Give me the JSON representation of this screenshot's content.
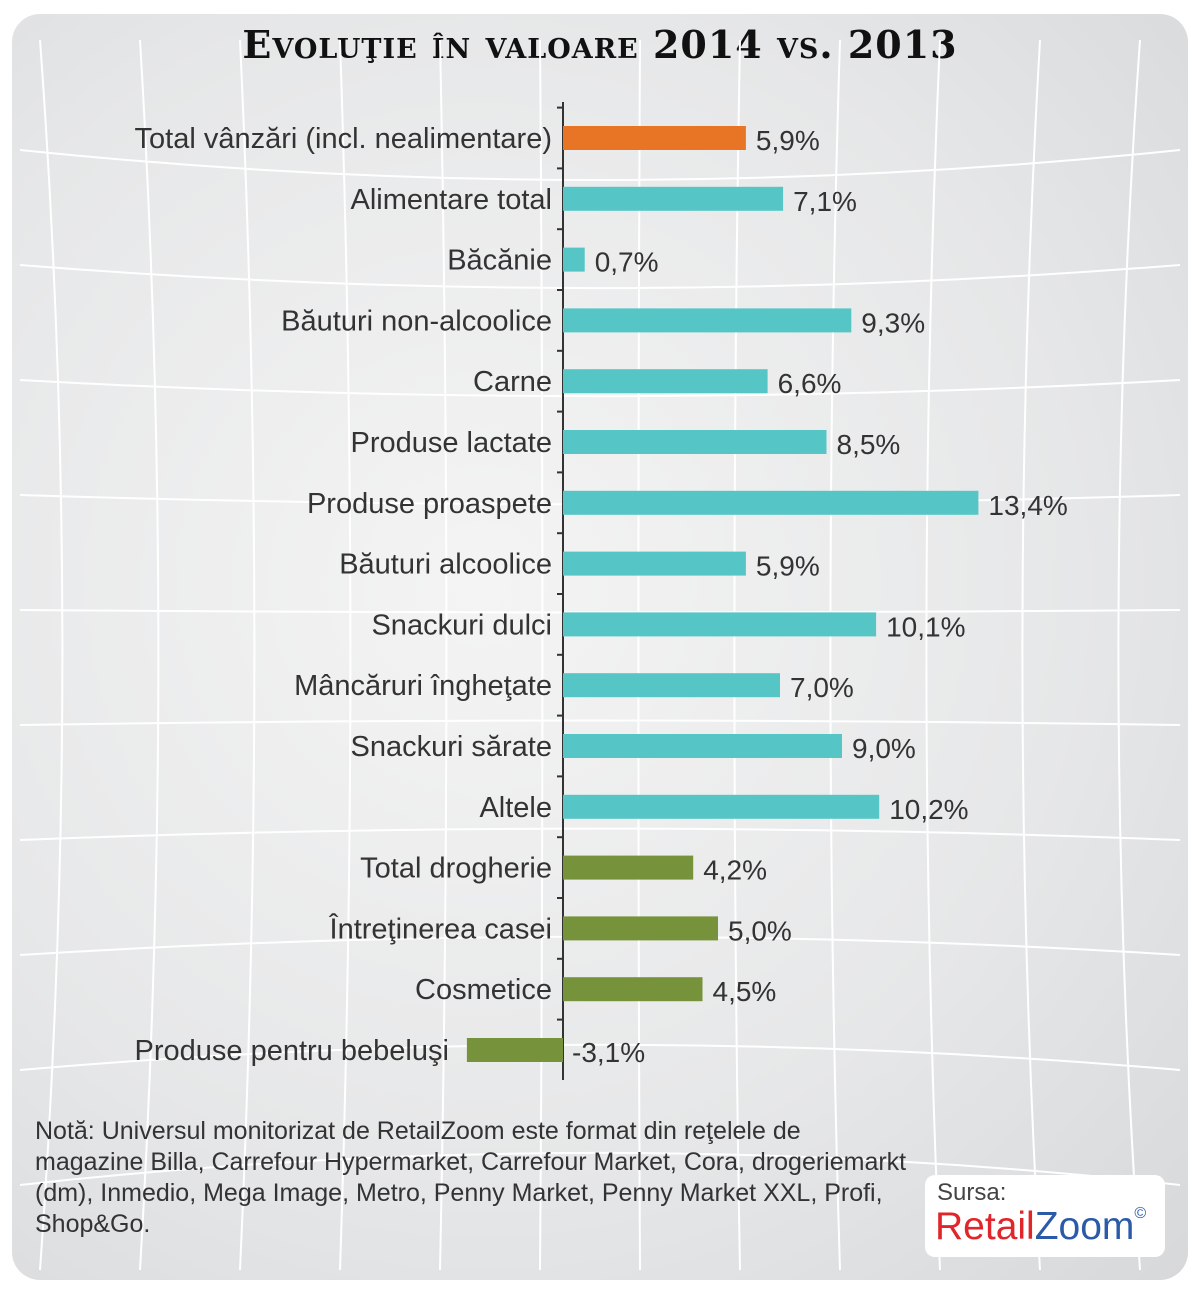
{
  "chart_data": {
    "type": "bar",
    "orientation": "horizontal",
    "title": "Evoluţie în valoare 2014 vs. 2013",
    "categories": [
      "Total vânzări (incl. nealimentare)",
      "Alimentare total",
      "Băcănie",
      "Băuturi non-alcoolice",
      "Carne",
      "Produse lactate",
      "Produse proaspete",
      "Băuturi alcoolice",
      "Snackuri dulci",
      "Mâncăruri îngheţate",
      "Snackuri sărate",
      "Altele",
      "Total drogherie",
      "Întreţinerea casei",
      "Cosmetice",
      "Produse pentru bebeluşi"
    ],
    "values": [
      5.9,
      7.1,
      0.7,
      9.3,
      6.6,
      8.5,
      13.4,
      5.9,
      10.1,
      7.0,
      9.0,
      10.2,
      4.2,
      5.0,
      4.5,
      -3.1
    ],
    "labels": [
      "5,9%",
      "7,1%",
      "0,7%",
      "9,3%",
      "6,6%",
      "8,5%",
      "13,4%",
      "5,9%",
      "10,1%",
      "7,0%",
      "9,0%",
      "10,2%",
      "4,2%",
      "5,0%",
      "4,5%",
      "-3,1%"
    ],
    "groups": [
      "total",
      "food",
      "food",
      "food",
      "food",
      "food",
      "food",
      "food",
      "food",
      "food",
      "food",
      "food",
      "drug",
      "drug",
      "drug",
      "drug"
    ],
    "colors": {
      "total": "#e87425",
      "food": "#56c5c6",
      "drug": "#76923a"
    },
    "unit": "%",
    "grid": false
  },
  "note": "Notă: Universul monitorizat de RetailZoom este format din reţelele de magazine Billa, Carrefour Hypermarket, Carrefour Market, Cora, drogeriemarkt (dm), Inmedio, Mega Image, Metro, Penny Market, Penny Market XXL, Profi, Shop&Go.",
  "source": {
    "label": "Sursa:",
    "brand_part1": "Retail",
    "brand_part2": "Zoom",
    "copyright": "©"
  }
}
